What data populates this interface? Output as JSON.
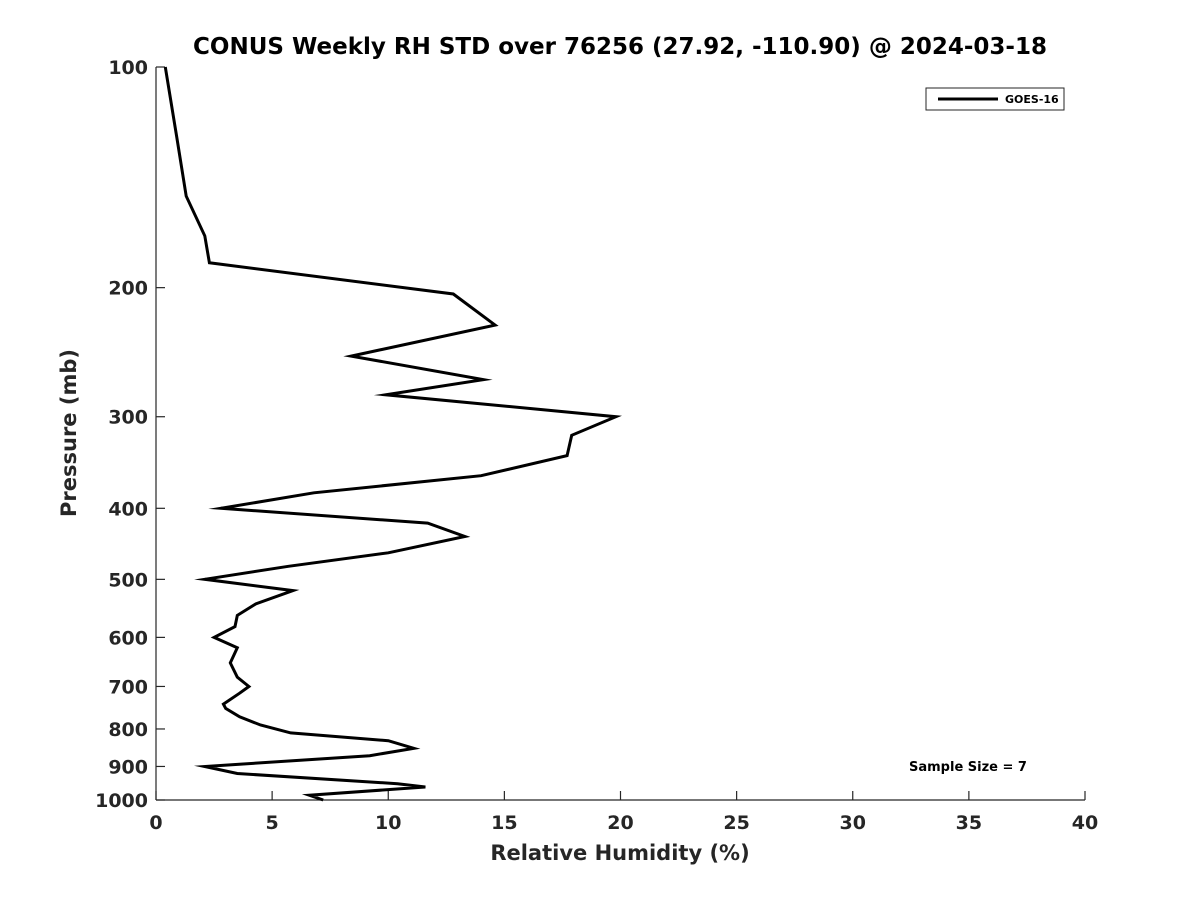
{
  "chart_data": {
    "type": "line",
    "title": "CONUS Weekly RH STD over 76256 (27.92, -110.90) @ 2024-03-18",
    "xlabel": "Relative Humidity (%)",
    "ylabel": "Pressure (mb)",
    "xlim": [
      0,
      40
    ],
    "ylim": [
      100,
      1000
    ],
    "y_scale": "log",
    "y_reversed": true,
    "xticks": [
      0,
      5,
      10,
      15,
      20,
      25,
      30,
      35,
      40
    ],
    "yticks": [
      100,
      200,
      300,
      400,
      500,
      600,
      700,
      800,
      900,
      1000
    ],
    "grid": false,
    "legend_position": "top-right",
    "annotation": "Sample Size = 7",
    "series": [
      {
        "name": "GOES-16",
        "color": "#000000",
        "points": [
          [
            0.4,
            100
          ],
          [
            0.9,
            125
          ],
          [
            1.3,
            150
          ],
          [
            2.1,
            170
          ],
          [
            2.3,
            185
          ],
          [
            12.8,
            204
          ],
          [
            14.6,
            225
          ],
          [
            8.4,
            248
          ],
          [
            14.1,
            267
          ],
          [
            9.9,
            280
          ],
          [
            19.8,
            300
          ],
          [
            17.9,
            318
          ],
          [
            17.7,
            339
          ],
          [
            14.0,
            361
          ],
          [
            6.8,
            381
          ],
          [
            2.8,
            400
          ],
          [
            11.7,
            419
          ],
          [
            13.3,
            437
          ],
          [
            10.0,
            460
          ],
          [
            5.7,
            480
          ],
          [
            2.1,
            500
          ],
          [
            5.9,
            518
          ],
          [
            4.3,
            540
          ],
          [
            3.5,
            560
          ],
          [
            3.4,
            580
          ],
          [
            2.5,
            600
          ],
          [
            3.5,
            620
          ],
          [
            3.2,
            650
          ],
          [
            3.5,
            680
          ],
          [
            4.0,
            700
          ],
          [
            3.6,
            715
          ],
          [
            2.9,
            740
          ],
          [
            3.0,
            750
          ],
          [
            3.6,
            770
          ],
          [
            4.5,
            790
          ],
          [
            5.8,
            810
          ],
          [
            10.0,
            830
          ],
          [
            11.1,
            850
          ],
          [
            9.2,
            870
          ],
          [
            2.1,
            900
          ],
          [
            3.5,
            920
          ],
          [
            10.4,
            950
          ],
          [
            11.6,
            960
          ],
          [
            6.6,
            985
          ],
          [
            7.2,
            1000
          ]
        ]
      }
    ]
  }
}
